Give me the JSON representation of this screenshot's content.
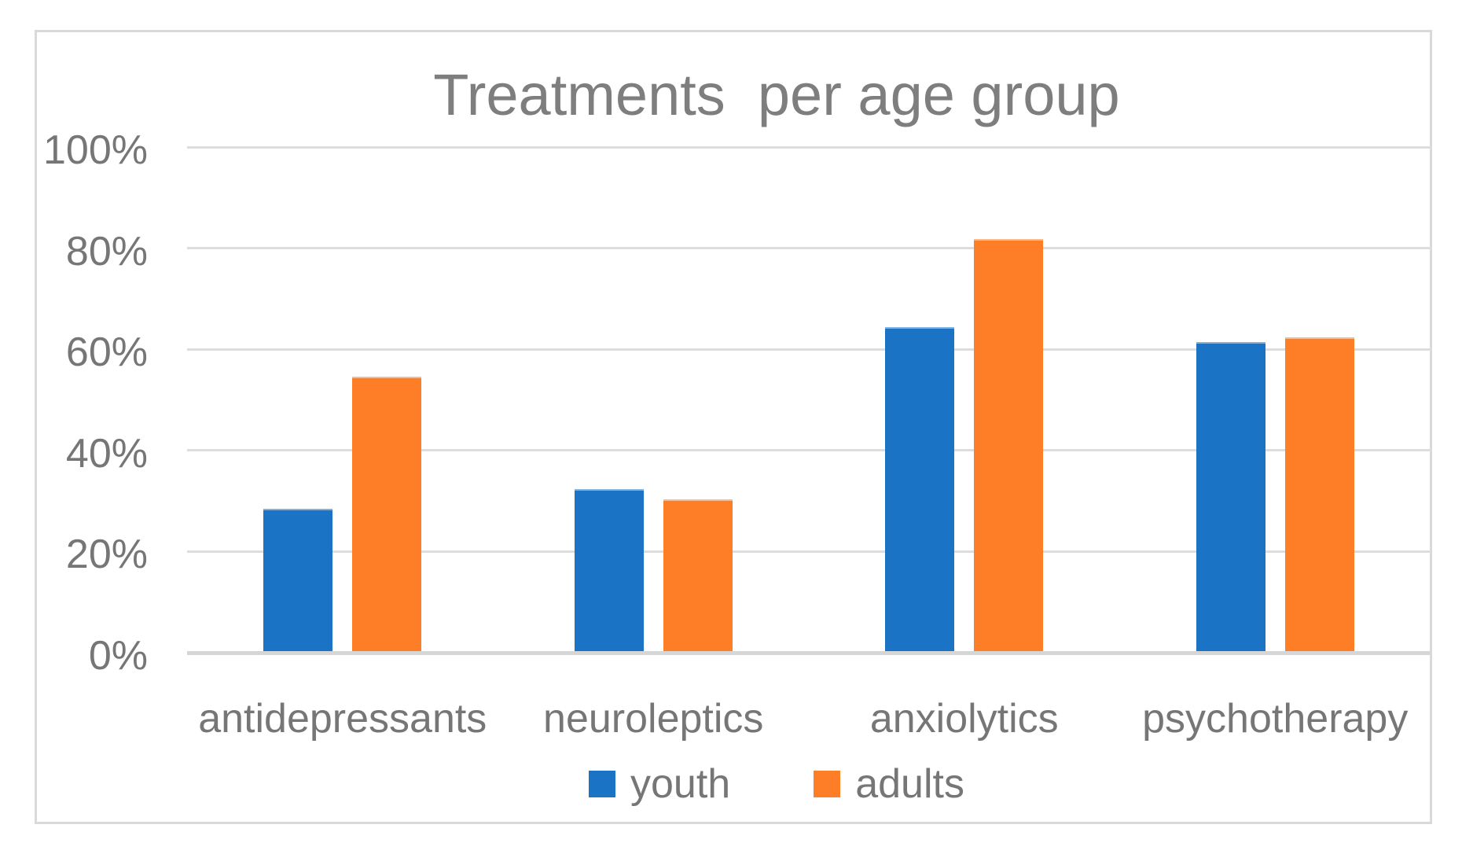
{
  "chart_data": {
    "type": "bar",
    "title": "Treatments  per age group",
    "categories": [
      "antidepressants",
      "neuroleptics",
      "anxiolytics",
      "psychotherapy"
    ],
    "series": [
      {
        "name": "youth",
        "color": "#1a73c5",
        "values": [
          28.5,
          32.3,
          64.4,
          61.4
        ]
      },
      {
        "name": "adults",
        "color": "#fd7e27",
        "values": [
          54.6,
          30.3,
          81.8,
          62.4
        ]
      }
    ],
    "xlabel": "",
    "ylabel": "",
    "ylim": [
      0,
      100
    ],
    "y_axis": {
      "ticks": [
        {
          "label": "100%",
          "value": 100
        },
        {
          "label": "80%",
          "value": 80
        },
        {
          "label": "60%",
          "value": 60
        },
        {
          "label": "40%",
          "value": 40
        },
        {
          "label": "20%",
          "value": 20
        },
        {
          "label": "0%",
          "value": 0
        }
      ]
    },
    "grid": "horizontal",
    "legend_position": "bottom"
  },
  "colors": {
    "youth_blue": "#1a73c5",
    "adults_orange": "#fd7e27",
    "gridline": "#dddddd",
    "axis_line": "#d6d6d6",
    "label_gray": "#767676",
    "title_gray": "#7e7e7e",
    "frame_border": "#d9d9d9",
    "background": "#ffffff"
  }
}
